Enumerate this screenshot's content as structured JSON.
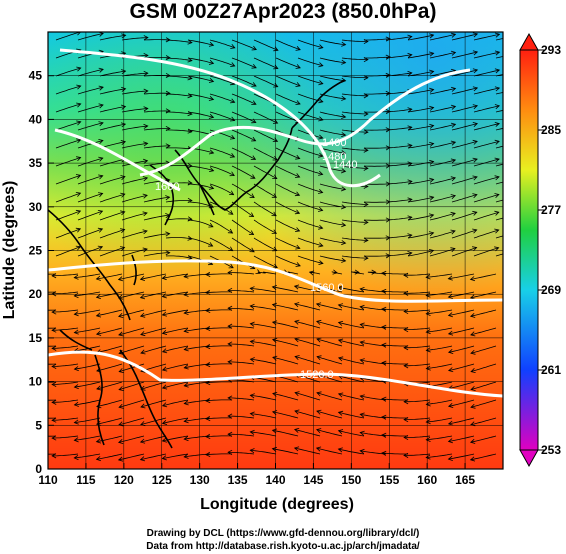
{
  "title": "GSM 00Z27Apr2023 (850.0hPa)",
  "axes": {
    "xlabel": "Longitude (degrees)",
    "ylabel": "Latitude  (degrees)",
    "x_ticks": [
      "110",
      "115",
      "120",
      "125",
      "130",
      "135",
      "140",
      "145",
      "150",
      "155",
      "160",
      "165"
    ],
    "y_ticks": [
      "0",
      "5",
      "10",
      "15",
      "20",
      "25",
      "30",
      "35",
      "40",
      "45"
    ],
    "x_range": [
      110,
      170
    ],
    "y_range": [
      0,
      50
    ]
  },
  "colorbar": {
    "labels": [
      "293",
      "285",
      "277",
      "269",
      "261",
      "253"
    ],
    "min": 253,
    "max": 293,
    "colors": [
      "#e000c0",
      "#1040ff",
      "#18d0e8",
      "#20d040",
      "#e8f020",
      "#ff8c10",
      "#ff2010"
    ]
  },
  "contours": [
    {
      "label": "1520.0"
    },
    {
      "label": "1560.0"
    },
    {
      "label": "1480"
    },
    {
      "label": "1440"
    },
    {
      "label": "1400"
    },
    {
      "label": "1600"
    }
  ],
  "credits": {
    "line1": "Drawing by DCL (https://www.gfd-dennou.org/library/dcl/)",
    "line2": "Data from http://database.rish.kyoto-u.ac.jp/arch/jmadata/"
  }
}
